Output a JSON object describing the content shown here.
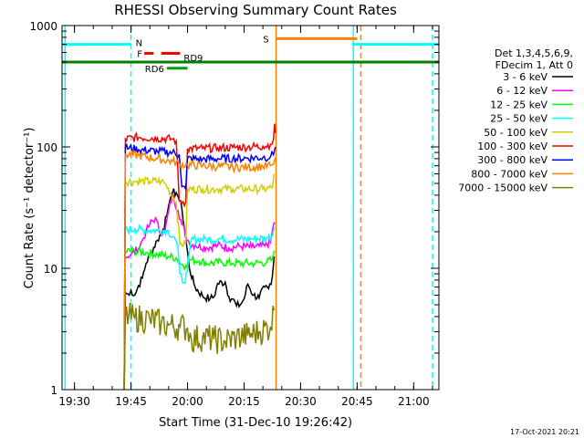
{
  "chart_data": {
    "type": "line",
    "title": "RHESSI Observing Summary Count Rates",
    "xlabel": "Start Time (31-Dec-10 19:26:42)",
    "ylabel": "Count Rate (s⁻¹ detector⁻¹)",
    "yscale": "log",
    "ylim": [
      1,
      1000
    ],
    "xlim_minutes_after_19_00": [
      26.7,
      126.7
    ],
    "x_ticks": [
      {
        "label": "19:30",
        "min": 30
      },
      {
        "label": "19:45",
        "min": 45
      },
      {
        "label": "20:00",
        "min": 60
      },
      {
        "label": "20:15",
        "min": 75
      },
      {
        "label": "20:30",
        "min": 90
      },
      {
        "label": "20:45",
        "min": 105
      },
      {
        "label": "21:00",
        "min": 120
      }
    ],
    "y_ticks": [
      {
        "label": "1",
        "value": 1
      },
      {
        "label": "10",
        "value": 10
      },
      {
        "label": "100",
        "value": 100
      },
      {
        "label": "1000",
        "value": 1000
      }
    ],
    "legend_position": "right",
    "legend_header": [
      "Det 1,3,4,5,6,9,",
      "FDecim 1, Att 0"
    ],
    "series": [
      {
        "name": "3 - 6 keV",
        "color": "#000000",
        "x": [
          43.2,
          43.5,
          44.5,
          45.0,
          46.0,
          47.0,
          48.0,
          49.0,
          50.0,
          52.0,
          53.5,
          54.5,
          55.0,
          55.5,
          56.0,
          57.0,
          57.5,
          58.5,
          59.5,
          60.5,
          62.0,
          64.0,
          66.0,
          67.0,
          68.0,
          70.0,
          71.0,
          72.0,
          73.0,
          74.0,
          75.0,
          76.0,
          77.5,
          79.0,
          80.5,
          81.5,
          82.5,
          83.0
        ],
        "y": [
          0,
          6.3,
          6.0,
          6.6,
          6.0,
          7.2,
          8.3,
          11,
          13,
          17,
          21,
          27,
          33,
          38,
          42,
          42,
          39,
          31,
          18,
          10,
          7.0,
          5.9,
          5.6,
          5.8,
          7.5,
          7.7,
          5.8,
          5.6,
          4.9,
          5.0,
          5.6,
          7.4,
          6.0,
          5.7,
          7.0,
          6.8,
          8.6,
          12.5
        ]
      },
      {
        "name": "6 - 12 keV",
        "color": "#ff00ff",
        "x": [
          43.2,
          43.5,
          45.0,
          47.0,
          48.0,
          49.0,
          50.0,
          51.5,
          52.5,
          54.0,
          55.0,
          56.0,
          57.5,
          58.5,
          59.5,
          60.5,
          62.0,
          65.0,
          68.0,
          71.0,
          74.0,
          77.0,
          79.0,
          80.5,
          82.0,
          83.0
        ],
        "y": [
          0,
          12.5,
          13.0,
          14.5,
          17,
          20,
          23,
          26,
          20,
          20,
          30,
          40,
          30,
          23,
          19,
          16,
          15.5,
          14.8,
          15.5,
          14.7,
          15.2,
          14.9,
          15.2,
          15.3,
          16.5,
          24
        ]
      },
      {
        "name": "12 - 25 keV",
        "color": "#00ff00",
        "x": [
          43.2,
          43.5,
          46.0,
          49.0,
          52.0,
          55.0,
          57.0,
          58.0,
          59.5,
          60.5,
          63.0,
          66.0,
          69.0,
          72.0,
          75.0,
          78.0,
          81.0,
          82.5,
          83.0
        ],
        "y": [
          0,
          13.8,
          13.9,
          13.5,
          13.0,
          12.5,
          12.2,
          11.0,
          10.5,
          11.8,
          11.5,
          11.0,
          11.2,
          11.0,
          11.0,
          11.0,
          11.2,
          11.8,
          14.0
        ]
      },
      {
        "name": "25 - 50 keV",
        "color": "#00ffff",
        "x": [
          43.2,
          43.5,
          46.0,
          50.0,
          52.0,
          54.5,
          56.5,
          57.5,
          58.0,
          59.0,
          60.0,
          61.0,
          65.0,
          69.0,
          73.0,
          77.0,
          81.0,
          82.5,
          83.0
        ],
        "y": [
          0,
          20.5,
          21.0,
          20.5,
          20.5,
          20.5,
          18.0,
          14.0,
          9.0,
          7.6,
          9.5,
          17.3,
          17.3,
          17.5,
          17.2,
          17.5,
          17.8,
          18.5,
          22
        ]
      },
      {
        "name": "50 - 100 keV",
        "color": "#d0d000",
        "x": [
          43.2,
          43.5,
          46.0,
          50.0,
          53.0,
          54.0,
          57.0,
          58.0,
          59.5,
          60.0,
          64.0,
          68.0,
          72.0,
          76.0,
          80.0,
          82.5,
          83.0
        ],
        "y": [
          0,
          52,
          52,
          52,
          52,
          50,
          35,
          15.8,
          15.8,
          45,
          45,
          45,
          45,
          45,
          45,
          46,
          60
        ]
      },
      {
        "name": "100 - 300 keV",
        "color": "#ff0000",
        "x": [
          43.2,
          43.5,
          47.0,
          52.0,
          56.0,
          57.0,
          57.8,
          59.5,
          60.0,
          64.0,
          68.0,
          72.0,
          76.0,
          80.0,
          82.0,
          82.8,
          83.1,
          83.3
        ],
        "y": [
          0,
          116,
          120,
          118,
          116,
          112,
          36,
          35,
          97,
          97,
          98,
          99,
          100,
          101,
          105,
          115,
          155,
          130
        ]
      },
      {
        "name": "300 - 800 keV",
        "color": "#0000ff",
        "x": [
          43.2,
          43.5,
          47.0,
          52.0,
          56.0,
          57.8,
          58.5,
          59.5,
          60.0,
          64.0,
          68.0,
          72.0,
          76.0,
          80.0,
          82.0,
          82.8,
          83.3
        ],
        "y": [
          0,
          99,
          95,
          92,
          90,
          87,
          47,
          45,
          80,
          79,
          80,
          80,
          81,
          82,
          83,
          86,
          100
        ]
      },
      {
        "name": "800 - 7000 keV",
        "color": "#ff8000",
        "x": [
          43.2,
          43.5,
          47.0,
          52.0,
          56.0,
          58.0,
          60.0,
          64.0,
          68.0,
          72.0,
          76.0,
          80.0,
          82.0,
          82.8,
          83.3
        ],
        "y": [
          0,
          87,
          85,
          80,
          76,
          72,
          71,
          70,
          69,
          68,
          68,
          69,
          70,
          72,
          82
        ]
      },
      {
        "name": "7000 - 15000 keV",
        "color": "#808000",
        "x": [
          43.2,
          43.5,
          46.0,
          50.0,
          53.0,
          55.0,
          58.0,
          60.0,
          61.0,
          64.0,
          67.0,
          70.0,
          73.0,
          76.0,
          79.0,
          82.0,
          83.0
        ],
        "y": [
          0,
          4.0,
          3.9,
          3.8,
          3.5,
          3.4,
          3.3,
          3.2,
          2.6,
          2.7,
          2.6,
          2.5,
          2.7,
          2.8,
          3.0,
          3.3,
          4.5
        ]
      }
    ],
    "flag_bars": [
      {
        "label": "N",
        "color": "#00ffff",
        "level": 700,
        "x_start": 26.7,
        "x_end": 45.0
      },
      {
        "label": "",
        "color": "#00ffff",
        "level": 700,
        "x_start": 103.7,
        "x_end": 126.7
      },
      {
        "label": "S",
        "color": "#ff8000",
        "level": 780,
        "x_start": 83.5,
        "x_end": 105.0
      },
      {
        "label": "F",
        "color": "#ff0000",
        "level": 590,
        "x_start": 48.5,
        "x_end": 51.0
      },
      {
        "label": "",
        "color": "#ff0000",
        "level": 590,
        "x_start": 53.0,
        "x_end": 58.0
      },
      {
        "label": "RD6",
        "color": "#00a000",
        "level": 445,
        "x_start": 54.5,
        "x_end": 60.0
      },
      {
        "label": "RD9",
        "color": "#008000",
        "level": 500,
        "x_start": 26.7,
        "x_end": 126.7
      }
    ],
    "vertical_lines": [
      {
        "min": 27.5,
        "color": "#00ffff",
        "style": "solid"
      },
      {
        "min": 45.0,
        "color": "#00ffff",
        "style": "dashed"
      },
      {
        "min": 83.5,
        "color": "#ff8000",
        "style": "solid"
      },
      {
        "min": 104.0,
        "color": "#00ffff",
        "style": "solid"
      },
      {
        "min": 106.0,
        "color": "#ff8000",
        "style": "dashed"
      },
      {
        "min": 125.0,
        "color": "#00ffff",
        "style": "dashed"
      }
    ]
  },
  "footer": {
    "timestamp": "17-Oct-2021 20:21"
  }
}
